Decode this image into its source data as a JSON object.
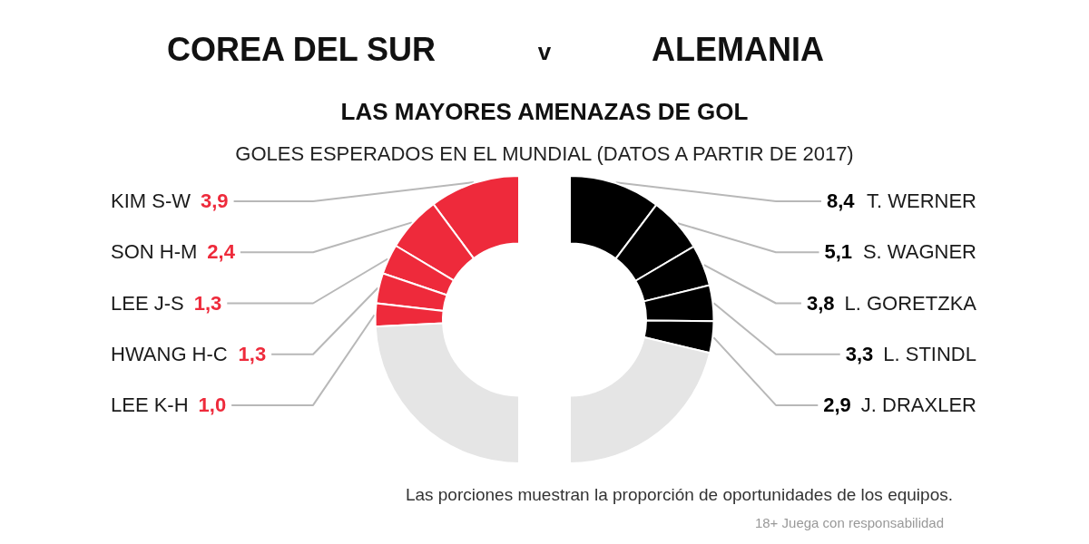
{
  "chart_data": [
    {
      "type": "donut",
      "title": "COREA DEL SUR",
      "categories": [
        "KIM S-W",
        "SON H-M",
        "LEE J-S",
        "HWANG H-C",
        "LEE K-H",
        null
      ],
      "values": [
        3.9,
        2.4,
        1.3,
        1.3,
        1.0,
        9.3
      ],
      "colors": [
        "#ee2a3b",
        "#ee2a3b",
        "#ee2a3b",
        "#ee2a3b",
        "#ee2a3b",
        "#e5e5e5"
      ],
      "value_labels": [
        "3,9",
        "2,4",
        "1,3",
        "1,3",
        "1,0",
        null
      ]
    },
    {
      "type": "donut",
      "title": "ALEMANIA",
      "subtitle": "LAS MAYORES AMENAZAS DE GOL",
      "categories": [
        "T. WERNER",
        "S. WAGNER",
        "L. GORETZKA",
        "L. STINDL",
        "J. DRAXLER",
        null
      ],
      "values": [
        8.4,
        5.1,
        3.8,
        3.3,
        2.9,
        17.4
      ],
      "colors": [
        "#000000",
        "#000000",
        "#000000",
        "#000000",
        "#000000",
        "#e5e5e5"
      ],
      "value_labels": [
        "8,4",
        "5,1",
        "3,8",
        "3,3",
        "2,9",
        null
      ],
      "annotations": [
        "v",
        "GOLES ESPERADOS EN EL MUNDIAL (DATOS A PARTIR DE 2017)",
        "Las porciones muestran la proporción de oportunidades de los equipos.",
        "18+ Juega con responsabilidad"
      ]
    }
  ]
}
